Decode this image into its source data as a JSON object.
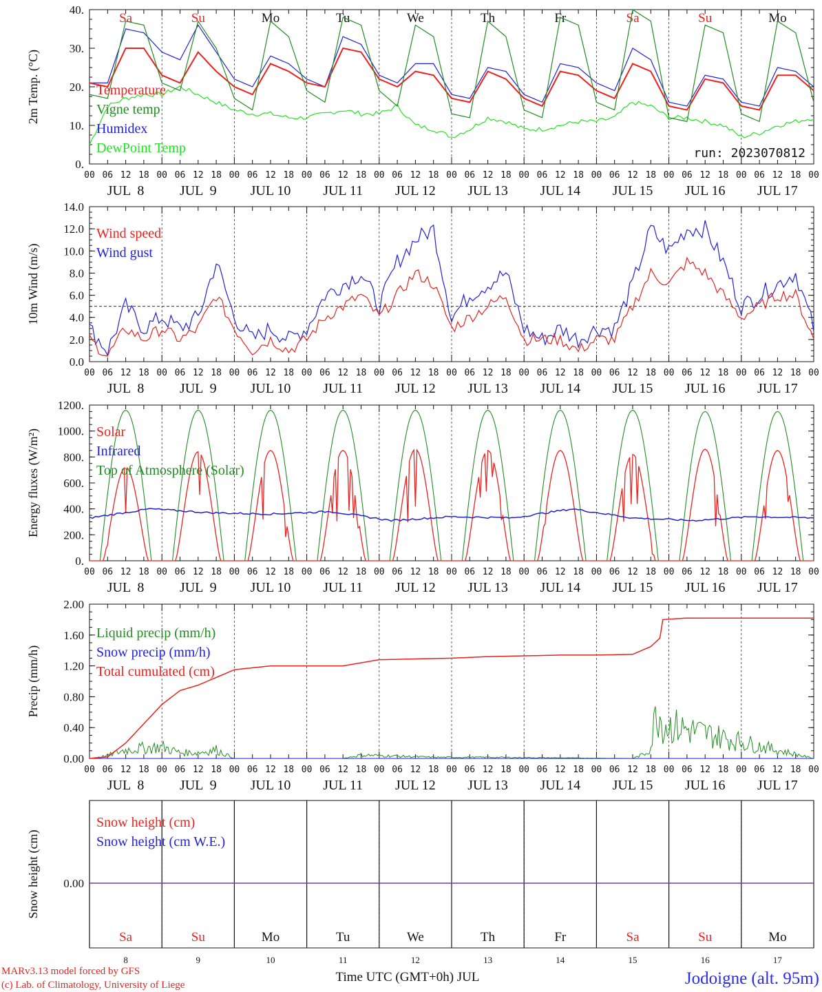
{
  "chart_data": [
    {
      "type": "line",
      "ylabel": "2m Temp. (°C)",
      "ylim": [
        0,
        40
      ],
      "yticks": [
        "0.",
        "10.",
        "20.",
        "30.",
        "40."
      ],
      "run_label": "run: 2023070812",
      "legend": [
        {
          "label": "Temperature",
          "color": "#e8221e"
        },
        {
          "label": "Vigne temp",
          "color": "#228b22"
        },
        {
          "label": "Humidex",
          "color": "#1f1fd9"
        },
        {
          "label": "DewPoint Temp",
          "color": "#22e322"
        }
      ],
      "weekday_labels": [
        "Sa",
        "Su",
        "Mo",
        "Tu",
        "We",
        "Th",
        "Fr",
        "Sa",
        "Su",
        "Mo"
      ],
      "series": [
        {
          "name": "Temperature",
          "color": "#e8221e",
          "x_hours": [
            0,
            6,
            12,
            18,
            24,
            30,
            36,
            42,
            48,
            54,
            60,
            66,
            72,
            78,
            84,
            90,
            96,
            102,
            108,
            114,
            120,
            126,
            132,
            138,
            144,
            150,
            156,
            162,
            168,
            174,
            180,
            186,
            192,
            198,
            204,
            210,
            216,
            222,
            228,
            234,
            240
          ],
          "values": [
            21,
            20,
            30,
            30,
            23,
            21,
            29,
            24,
            20,
            18,
            26,
            24,
            21,
            20,
            30,
            29,
            22,
            20,
            24,
            23,
            17,
            16,
            24,
            22,
            17,
            15,
            24,
            23,
            19,
            17,
            26,
            24,
            15,
            14,
            22,
            21,
            15,
            14,
            23,
            23,
            19
          ]
        },
        {
          "name": "Vigne temp",
          "color": "#228b22",
          "x_hours": [
            0,
            6,
            12,
            18,
            24,
            30,
            36,
            42,
            48,
            54,
            60,
            66,
            72,
            78,
            84,
            90,
            96,
            102,
            108,
            114,
            120,
            126,
            132,
            138,
            144,
            150,
            156,
            162,
            168,
            174,
            180,
            186,
            192,
            198,
            204,
            210,
            216,
            222,
            228,
            234,
            240
          ],
          "values": [
            18,
            17,
            37,
            36,
            21,
            19,
            37,
            30,
            17,
            14,
            37,
            33,
            19,
            16,
            38,
            36,
            19,
            15,
            36,
            33,
            13,
            12,
            37,
            33,
            14,
            12,
            38,
            36,
            16,
            14,
            40,
            37,
            12,
            11,
            36,
            34,
            13,
            11,
            37,
            34,
            16
          ]
        },
        {
          "name": "Humidex",
          "color": "#1f1fd9",
          "x_hours": [
            0,
            6,
            12,
            18,
            24,
            30,
            36,
            42,
            48,
            54,
            60,
            66,
            72,
            78,
            84,
            90,
            96,
            102,
            108,
            114,
            120,
            126,
            132,
            138,
            144,
            150,
            156,
            162,
            168,
            174,
            180,
            186,
            192,
            198,
            204,
            210,
            216,
            222,
            228,
            234,
            240
          ],
          "values": [
            21,
            21,
            35,
            34,
            29,
            27,
            36,
            29,
            22,
            20,
            28,
            26,
            22,
            20,
            33,
            31,
            23,
            21,
            26,
            26,
            18,
            17,
            25,
            24,
            18,
            16,
            26,
            25,
            21,
            19,
            30,
            27,
            16,
            15,
            23,
            22,
            16,
            15,
            25,
            24,
            20
          ]
        },
        {
          "name": "DewPoint Temp",
          "color": "#22e322",
          "x_hours": [
            0,
            6,
            12,
            18,
            24,
            30,
            36,
            42,
            48,
            54,
            60,
            66,
            72,
            78,
            84,
            90,
            96,
            102,
            108,
            114,
            120,
            126,
            132,
            138,
            144,
            150,
            156,
            162,
            168,
            174,
            180,
            186,
            192,
            198,
            204,
            210,
            216,
            222,
            228,
            234,
            240
          ],
          "values": [
            5,
            15,
            17,
            18,
            18,
            20,
            18,
            16,
            14,
            13,
            13,
            12,
            12,
            13,
            14,
            13,
            13,
            15,
            10,
            9,
            7,
            9,
            12,
            11,
            9,
            9,
            10,
            11,
            11,
            12,
            16,
            15,
            12,
            12,
            11,
            10,
            7,
            8,
            10,
            11,
            12
          ]
        }
      ]
    },
    {
      "type": "line",
      "ylabel": "10m Wind (m/s)",
      "ylim": [
        0,
        14
      ],
      "yticks": [
        "0.0",
        "2.0",
        "4.0",
        "6.0",
        "8.0",
        "10.0",
        "12.0",
        "14.0"
      ],
      "reference_line": 5,
      "legend": [
        {
          "label": "Wind speed",
          "color": "#e8221e"
        },
        {
          "label": "Wind gust",
          "color": "#1f1fd9"
        }
      ],
      "series": [
        {
          "name": "Wind speed",
          "color": "#e8221e",
          "x_hours": [
            0,
            6,
            12,
            18,
            24,
            30,
            36,
            42,
            48,
            54,
            60,
            66,
            72,
            78,
            84,
            90,
            96,
            102,
            108,
            114,
            120,
            126,
            132,
            138,
            144,
            150,
            156,
            162,
            168,
            174,
            180,
            186,
            192,
            198,
            204,
            210,
            216,
            222,
            228,
            234,
            240
          ],
          "values": [
            2,
            0.5,
            3,
            2,
            3,
            2,
            3,
            6,
            3,
            1,
            2,
            1,
            2,
            4,
            5,
            6,
            4,
            6,
            8,
            7,
            3,
            4,
            5,
            6,
            2,
            2,
            2,
            1,
            2,
            2,
            5,
            8,
            7,
            9,
            8,
            6,
            4,
            5,
            6,
            6,
            2
          ]
        },
        {
          "name": "Wind gust",
          "color": "#1f1fd9",
          "x_hours": [
            0,
            6,
            12,
            18,
            24,
            30,
            36,
            42,
            48,
            54,
            60,
            66,
            72,
            78,
            84,
            90,
            96,
            102,
            108,
            114,
            120,
            126,
            132,
            138,
            144,
            150,
            156,
            162,
            168,
            174,
            180,
            186,
            192,
            198,
            204,
            210,
            216,
            222,
            228,
            234,
            240
          ],
          "values": [
            3,
            1,
            5,
            3,
            4,
            3,
            4,
            9,
            4,
            2,
            3,
            2,
            3,
            6,
            7,
            8,
            5,
            9,
            11,
            12,
            4,
            6,
            7,
            8,
            3,
            2,
            3,
            2,
            3,
            3,
            7,
            12,
            10,
            12,
            12,
            9,
            5,
            6,
            7,
            8,
            3
          ]
        }
      ]
    },
    {
      "type": "line",
      "ylabel": "Energy fluxes (W/m²)",
      "ylim": [
        0,
        1200
      ],
      "yticks": [
        "0.",
        "200.",
        "400.",
        "600.",
        "800.",
        "1000.",
        "1200."
      ],
      "legend": [
        {
          "label": "Solar",
          "color": "#e8221e"
        },
        {
          "label": "Infrared",
          "color": "#1f1fd9"
        },
        {
          "label": "Top of Atmosphere (Solar)",
          "color": "#228b22"
        }
      ],
      "series": [
        {
          "name": "Solar",
          "color": "#e8221e",
          "daily_peak": [
            720,
            840,
            850,
            850,
            860,
            850,
            850,
            820,
            860,
            850
          ]
        },
        {
          "name": "Infrared",
          "color": "#1f1fd9",
          "values": [
            330,
            400,
            370,
            360,
            380,
            310,
            340,
            330,
            400,
            330,
            310,
            340,
            330
          ]
        },
        {
          "name": "Top of Atmosphere (Solar)",
          "color": "#228b22",
          "daily_peak": [
            1160,
            1160,
            1160,
            1160,
            1160,
            1160,
            1160,
            1160,
            1150,
            1150
          ]
        }
      ]
    },
    {
      "type": "line",
      "ylabel": "Precip (mm/h)",
      "ylim": [
        0,
        2.0
      ],
      "yticks": [
        "0.00",
        "0.40",
        "0.80",
        "1.20",
        "1.60",
        "2.00"
      ],
      "legend": [
        {
          "label": "Liquid precip (mm/h)",
          "color": "#228b22"
        },
        {
          "label": "Snow precip (mm/h)",
          "color": "#1f1fd9"
        },
        {
          "label": "Total cumulated (cm)",
          "color": "#e8221e"
        }
      ],
      "series": [
        {
          "name": "Total cumulated (cm)",
          "color": "#e8221e",
          "x_hours": [
            0,
            6,
            12,
            18,
            24,
            30,
            36,
            42,
            48,
            60,
            72,
            84,
            96,
            108,
            120,
            132,
            144,
            156,
            168,
            180,
            186,
            189,
            190,
            198,
            240
          ],
          "values": [
            0,
            0.02,
            0.2,
            0.45,
            0.7,
            0.88,
            0.95,
            1.05,
            1.15,
            1.2,
            1.2,
            1.2,
            1.28,
            1.29,
            1.3,
            1.32,
            1.33,
            1.34,
            1.34,
            1.35,
            1.45,
            1.56,
            1.8,
            1.82,
            1.82
          ]
        },
        {
          "name": "Liquid precip (mm/h)",
          "color": "#228b22",
          "x_hours": [
            0,
            6,
            12,
            18,
            24,
            30,
            36,
            42,
            48,
            84,
            90,
            114,
            132,
            180,
            184,
            186,
            188,
            190,
            240
          ],
          "values": [
            0,
            0.05,
            0.15,
            0.18,
            0.2,
            0.1,
            0.1,
            0.15,
            0,
            0,
            0.06,
            0.02,
            0.02,
            0,
            0.08,
            0.2,
            0.9,
            0.6,
            0
          ]
        },
        {
          "name": "Snow precip (mm/h)",
          "color": "#1f1fd9",
          "values": []
        }
      ]
    },
    {
      "type": "line",
      "ylabel": "Snow height (cm)",
      "yticks": [
        "0.00"
      ],
      "legend": [
        {
          "label": "Snow height (cm)",
          "color": "#e8221e"
        },
        {
          "label": "Snow height (cm W.E.)",
          "color": "#1f1fd9"
        }
      ],
      "series": [
        {
          "name": "Snow height (cm)",
          "color": "#e8221e",
          "values": [
            0,
            0
          ]
        },
        {
          "name": "Snow height (cm W.E.)",
          "color": "#1f1fd9",
          "values": [
            0,
            0
          ]
        }
      ]
    }
  ],
  "x_axis": {
    "hour_ticks": [
      "00",
      "06",
      "12",
      "18"
    ],
    "final_tick": "00",
    "date_labels": [
      "JUL  8",
      "JUL  9",
      "JUL 10",
      "JUL 11",
      "JUL 12",
      "JUL 13",
      "JUL 14",
      "JUL 15",
      "JUL 16",
      "JUL 17"
    ],
    "weekdays": [
      "Sa",
      "Su",
      "Mo",
      "Tu",
      "We",
      "Th",
      "Fr",
      "Sa",
      "Su",
      "Mo"
    ],
    "weekend_color": "#e8221e",
    "weekday_color": "#111111",
    "day_numbers": [
      "8",
      "9",
      "10",
      "11",
      "12",
      "13",
      "14",
      "15",
      "16",
      "17"
    ],
    "xlabel": "Time UTC (GMT+0h) JUL"
  },
  "footer": {
    "model_line": "MARv3.13 model forced by GFS",
    "copyright_line": "(c) Lab. of Climatology, University of Liege",
    "station": "Jodoigne (alt. 95m)",
    "station_color": "#2a2aea"
  }
}
